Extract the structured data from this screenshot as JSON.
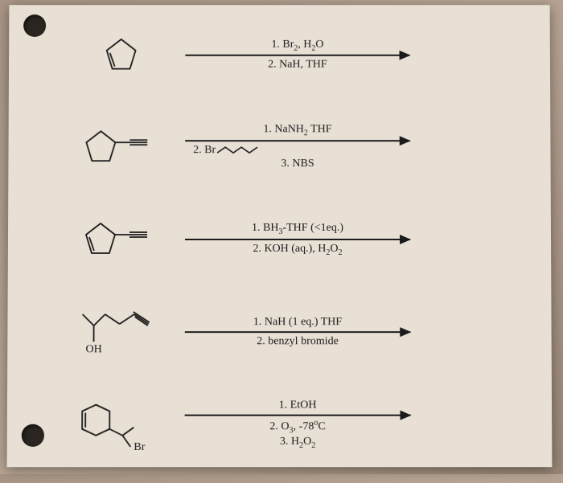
{
  "reactions": [
    {
      "top": "1. Br₂, H₂O",
      "bottom": "2. NaH, THF",
      "extra": ""
    },
    {
      "top": "1. NaNH₂ THF",
      "bottom_prefix": "2.  Br",
      "bottom": "",
      "extra": "3. NBS",
      "has_wavy": true
    },
    {
      "top": "1. BH₃-THF (<1eq.)",
      "bottom": "2. KOH (aq.), H₂O₂",
      "extra": ""
    },
    {
      "top": "1. NaH (1 eq.) THF",
      "bottom": "2. benzyl bromide",
      "extra": ""
    },
    {
      "top": "1. EtOH",
      "bottom": "2. O₃, -78°C",
      "extra": "3. H₂O₂"
    }
  ],
  "labels": {
    "oh": "OH",
    "br": "Br"
  },
  "colors": {
    "ink": "#1a1a1a",
    "paper": "#e8e0d5"
  }
}
